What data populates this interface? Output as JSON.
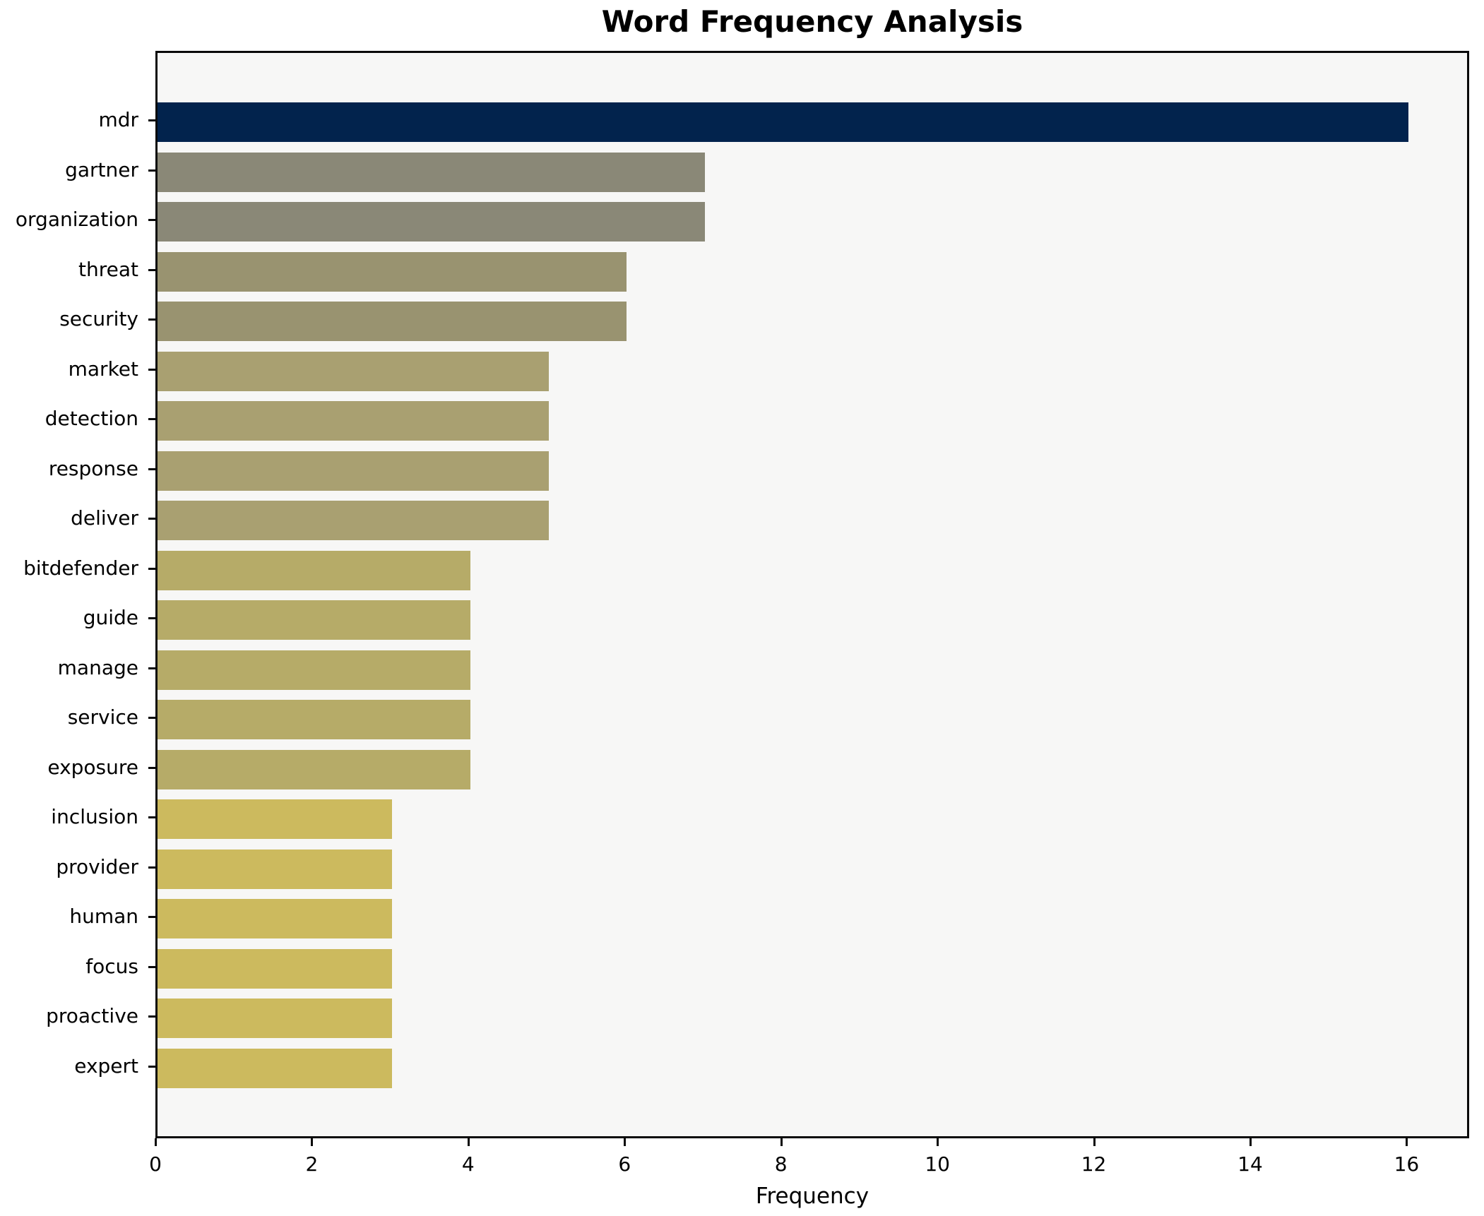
{
  "chart_data": {
    "type": "bar",
    "orientation": "horizontal",
    "title": "Word Frequency Analysis",
    "xlabel": "Frequency",
    "ylabel": "",
    "categories": [
      "mdr",
      "gartner",
      "organization",
      "threat",
      "security",
      "market",
      "detection",
      "response",
      "deliver",
      "bitdefender",
      "guide",
      "manage",
      "service",
      "exposure",
      "inclusion",
      "provider",
      "human",
      "focus",
      "proactive",
      "expert"
    ],
    "values": [
      16,
      7,
      7,
      6,
      6,
      5,
      5,
      5,
      5,
      4,
      4,
      4,
      4,
      4,
      3,
      3,
      3,
      3,
      3,
      3
    ],
    "bar_colors": [
      "#02234d",
      "#8a8877",
      "#8a8877",
      "#999370",
      "#999370",
      "#a9a071",
      "#a9a071",
      "#a9a071",
      "#a9a071",
      "#b6ab68",
      "#b6ab68",
      "#b6ab68",
      "#b6ab68",
      "#b6ab68",
      "#ccba5e",
      "#ccba5e",
      "#ccba5e",
      "#ccba5e",
      "#ccba5e",
      "#ccba5e"
    ],
    "x_ticks": [
      0,
      2,
      4,
      6,
      8,
      10,
      12,
      14,
      16
    ],
    "xlim": [
      0,
      16.8
    ],
    "grid": false,
    "legend": false,
    "plot_background": "#f7f7f6",
    "figure_background": "#ffffff",
    "spine_color": "#0a0a0a"
  }
}
